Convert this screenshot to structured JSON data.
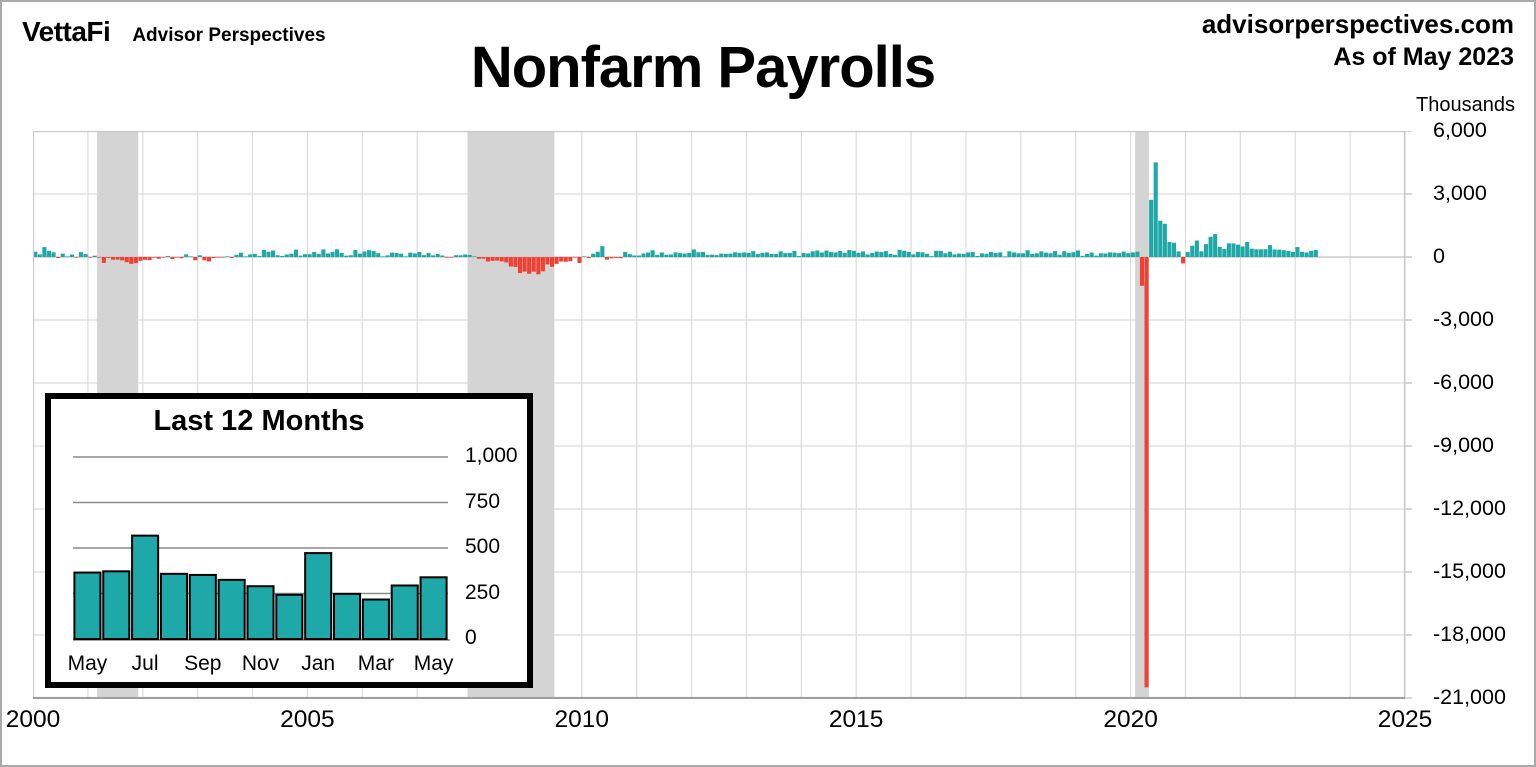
{
  "header": {
    "logo": "VettaFi",
    "logo_sub": "Advisor Perspectives",
    "title": "Nonfarm Payrolls",
    "site": "advisorperspectives.com",
    "as_of": "As of May 2023",
    "unit_label": "Thousands"
  },
  "colors": {
    "positive": "#1fa8a8",
    "negative": "#ef4134",
    "recession_band": "#d4d4d4",
    "gridline": "#dcdcdc",
    "zero_line": "#c8c8c8",
    "plot_border": "#c9c9c9",
    "axis_line": "#9f9f9f",
    "inset_bar_stroke": "#000000"
  },
  "chart_data": [
    {
      "id": "main",
      "type": "bar",
      "title": "Nonfarm Payrolls",
      "ylabel": "Thousands",
      "xlim": [
        2000,
        2025
      ],
      "ylim": [
        -21000,
        6000
      ],
      "grid": true,
      "start_month": "2000-01",
      "end_month": "2023-05",
      "y_ticks": [
        {
          "v": 6000,
          "label": "6,000"
        },
        {
          "v": 3000,
          "label": "3,000"
        },
        {
          "v": 0,
          "label": "0"
        },
        {
          "v": -3000,
          "label": "-3,000"
        },
        {
          "v": -6000,
          "label": "-6,000"
        },
        {
          "v": -9000,
          "label": "-9,000"
        },
        {
          "v": -12000,
          "label": "-12,000"
        },
        {
          "v": -15000,
          "label": "-15,000"
        },
        {
          "v": -18000,
          "label": "-18,000"
        },
        {
          "v": -21000,
          "label": "-21,000"
        }
      ],
      "x_ticks": [
        {
          "year": 2000,
          "label": "2000"
        },
        {
          "year": 2005,
          "label": "2005"
        },
        {
          "year": 2010,
          "label": "2010"
        },
        {
          "year": 2015,
          "label": "2015"
        },
        {
          "year": 2020,
          "label": "2020"
        },
        {
          "year": 2025,
          "label": "2025"
        }
      ],
      "recession_bands": [
        {
          "start": 2001.167,
          "end": 2001.917
        },
        {
          "start": 2007.917,
          "end": 2009.5
        },
        {
          "start": 2020.083,
          "end": 2020.333
        }
      ],
      "monthly_values_thousands": [
        249,
        121,
        472,
        286,
        225,
        -46,
        163,
        3,
        122,
        -11,
        231,
        138,
        -16,
        61,
        -30,
        -281,
        -44,
        -128,
        -125,
        -160,
        -244,
        -325,
        -292,
        -178,
        -132,
        -147,
        -24,
        -85,
        -7,
        45,
        -97,
        -16,
        -55,
        126,
        8,
        -156,
        83,
        -158,
        -212,
        -49,
        -6,
        -2,
        25,
        -42,
        103,
        203,
        18,
        124,
        150,
        43,
        338,
        250,
        310,
        81,
        47,
        121,
        160,
        351,
        64,
        132,
        136,
        240,
        142,
        360,
        169,
        246,
        369,
        195,
        63,
        84,
        334,
        158,
        262,
        326,
        280,
        182,
        22,
        78,
        208,
        188,
        158,
        2,
        205,
        171,
        238,
        88,
        188,
        78,
        144,
        71,
        -33,
        -16,
        85,
        82,
        118,
        97,
        15,
        -86,
        -78,
        -214,
        -182,
        -172,
        -210,
        -259,
        -452,
        -474,
        -765,
        -697,
        -798,
        -701,
        -826,
        -684,
        -354,
        -467,
        -327,
        -216,
        -227,
        -198,
        -6,
        -283,
        18,
        -50,
        156,
        251,
        516,
        -122,
        -61,
        -42,
        -57,
        241,
        137,
        71,
        70,
        168,
        212,
        322,
        102,
        217,
        106,
        122,
        221,
        183,
        164,
        196,
        360,
        226,
        243,
        96,
        110,
        88,
        160,
        150,
        161,
        225,
        203,
        214,
        197,
        280,
        141,
        199,
        218,
        146,
        140,
        269,
        185,
        189,
        291,
        45,
        187,
        168,
        272,
        310,
        213,
        306,
        232,
        218,
        286,
        200,
        331,
        292,
        201,
        266,
        119,
        187,
        260,
        231,
        277,
        150,
        100,
        344,
        298,
        239,
        126,
        237,
        225,
        153,
        43,
        297,
        291,
        176,
        249,
        124,
        164,
        155,
        216,
        232,
        50,
        175,
        155,
        239,
        189,
        221,
        14,
        271,
        216,
        175,
        176,
        324,
        155,
        175,
        268,
        208,
        178,
        282,
        108,
        277,
        196,
        227,
        312,
        56,
        147,
        210,
        62,
        178,
        166,
        219,
        208,
        185,
        261,
        184,
        214,
        251,
        -1373,
        -20493,
        2725,
        4505,
        1726,
        1583,
        716,
        680,
        264,
        -306,
        233,
        536,
        785,
        269,
        614,
        962,
        1091,
        483,
        379,
        648,
        647,
        588,
        504,
        714,
        398,
        368,
        365,
        372,
        568,
        358,
        352,
        325,
        290,
        243,
        472,
        248,
        217,
        294,
        339
      ]
    },
    {
      "id": "last12",
      "type": "bar",
      "title": "Last 12 Months",
      "ylim": [
        0,
        1100
      ],
      "grid": true,
      "categories": [
        "May",
        "Jun",
        "Jul",
        "Aug",
        "Sep",
        "Oct",
        "Nov",
        "Dec",
        "Jan",
        "Feb",
        "Mar",
        "Apr",
        "May"
      ],
      "values": [
        365,
        372,
        568,
        358,
        352,
        325,
        290,
        243,
        472,
        248,
        217,
        294,
        339
      ],
      "y_ticks": [
        {
          "v": 0,
          "label": "0"
        },
        {
          "v": 250,
          "label": "250"
        },
        {
          "v": 500,
          "label": "500"
        },
        {
          "v": 750,
          "label": "750"
        },
        {
          "v": 1000,
          "label": "1,000"
        }
      ],
      "x_labels_shown": [
        "May",
        "Jul",
        "Sep",
        "Nov",
        "Jan",
        "Mar",
        "May"
      ]
    }
  ]
}
